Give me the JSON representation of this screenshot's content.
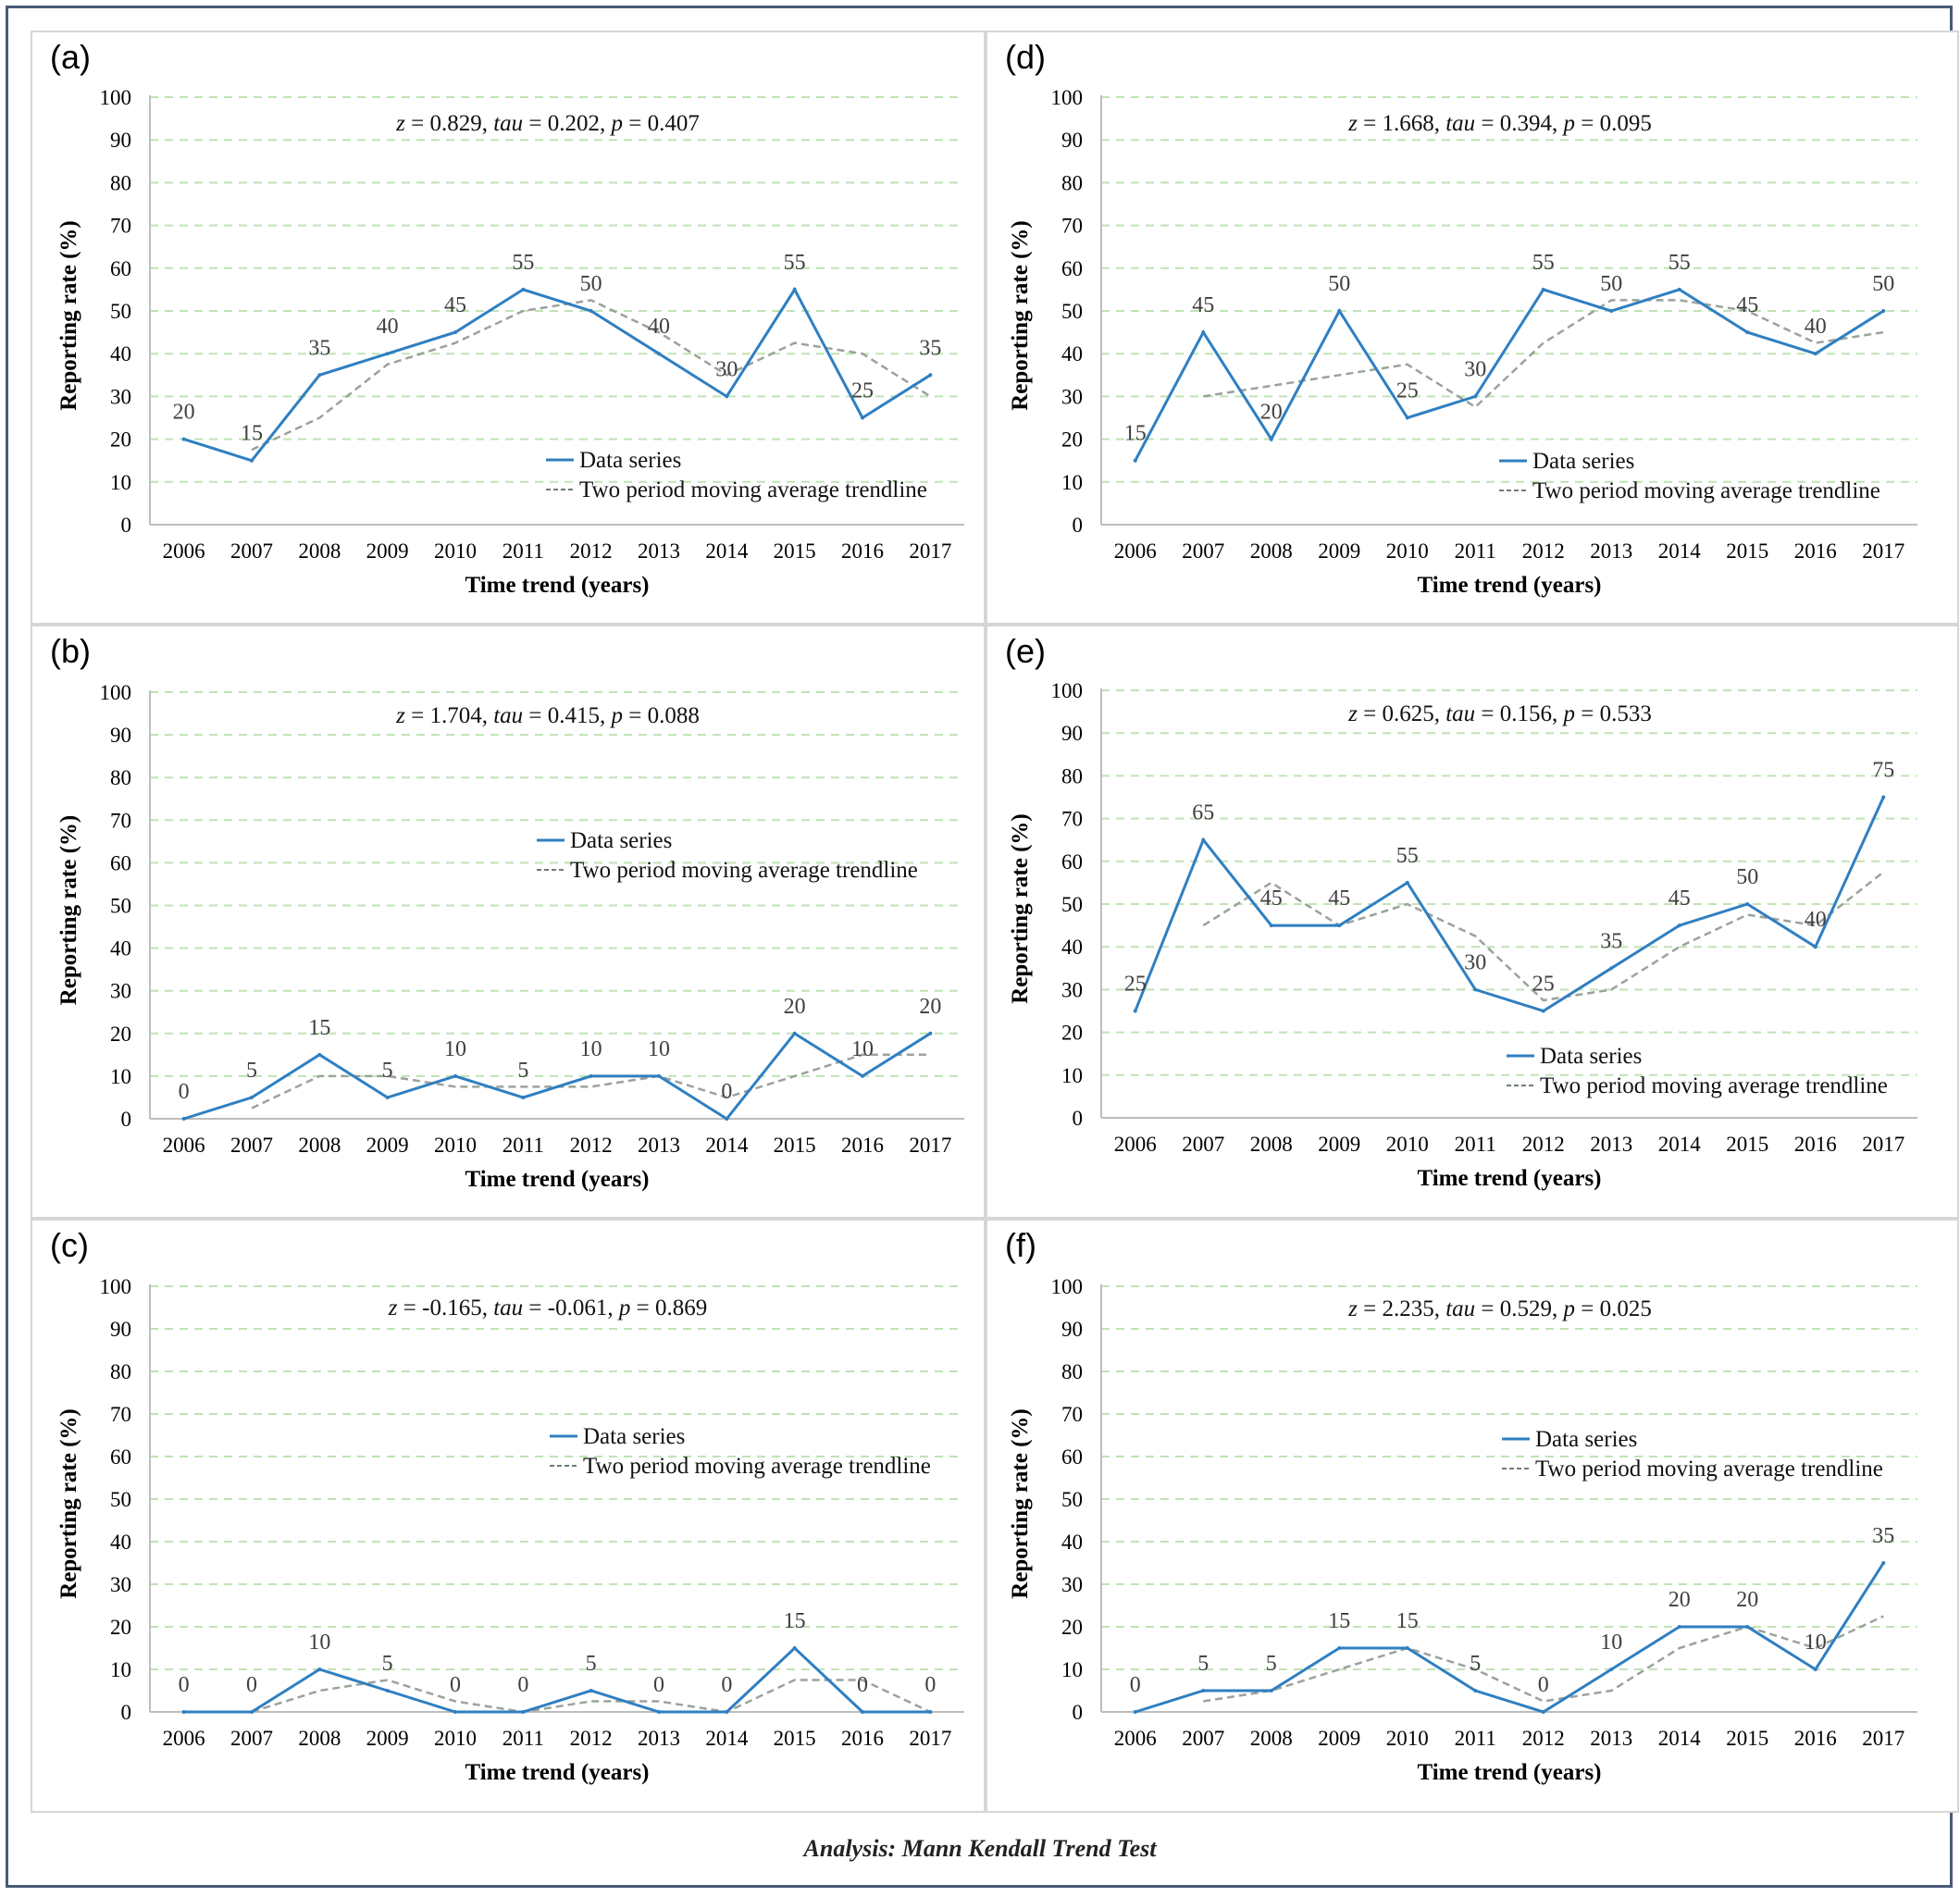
{
  "caption": "Analysis: Mann Kendall Trend Test",
  "colors": {
    "series": "#2f7fc1",
    "trend": "#9aa39a",
    "grid": "#bfe3b4",
    "panel_border": "#d6d6d6",
    "frame": "#4a5a78"
  },
  "legend": {
    "series": "Data series",
    "trend": "Two period moving average trendline"
  },
  "axis": {
    "ylabel": "Reporting rate (%)",
    "xlabel": "Time trend (years)",
    "yticks": [
      "0",
      "10",
      "20",
      "30",
      "40",
      "50",
      "60",
      "70",
      "80",
      "90",
      "100"
    ]
  },
  "chart_data": [
    {
      "type": "line",
      "panel": "(a)",
      "stats": {
        "z": "0.829",
        "tau": "0.202",
        "p": "0.407"
      },
      "x": [
        "2006",
        "2007",
        "2008",
        "2009",
        "2010",
        "2011",
        "2012",
        "2013",
        "2014",
        "2015",
        "2016",
        "2017"
      ],
      "series": [
        {
          "name": "Data series",
          "values": [
            20,
            15,
            35,
            40,
            45,
            55,
            50,
            40,
            30,
            55,
            25,
            35
          ]
        },
        {
          "name": "Two period moving average trendline",
          "values": [
            null,
            17.5,
            25,
            37.5,
            42.5,
            50,
            52.5,
            45,
            35,
            42.5,
            40,
            30
          ]
        }
      ],
      "ylim": [
        0,
        100
      ],
      "xlabel": "Time trend (years)",
      "ylabel": "Reporting rate (%)",
      "legend_position": "bottom-right"
    },
    {
      "type": "line",
      "panel": "(b)",
      "stats": {
        "z": "1.704",
        "tau": "0.415",
        "p": "0.088"
      },
      "x": [
        "2006",
        "2007",
        "2008",
        "2009",
        "2010",
        "2011",
        "2012",
        "2013",
        "2014",
        "2015",
        "2016",
        "2017"
      ],
      "series": [
        {
          "name": "Data series",
          "values": [
            0,
            5,
            15,
            5,
            10,
            5,
            10,
            10,
            0,
            20,
            10,
            20
          ]
        },
        {
          "name": "Two period moving average trendline",
          "values": [
            null,
            2.5,
            10,
            10,
            7.5,
            7.5,
            7.5,
            10,
            5,
            10,
            15,
            15
          ]
        }
      ],
      "ylim": [
        0,
        100
      ],
      "xlabel": "Time trend (years)",
      "ylabel": "Reporting rate (%)",
      "legend_position": "middle-right"
    },
    {
      "type": "line",
      "panel": "(c)",
      "stats": {
        "z": "-0.165",
        "tau": "-0.061",
        "p": "0.869"
      },
      "x": [
        "2006",
        "2007",
        "2008",
        "2009",
        "2010",
        "2011",
        "2012",
        "2013",
        "2014",
        "2015",
        "2016",
        "2017"
      ],
      "series": [
        {
          "name": "Data series",
          "values": [
            0,
            0,
            10,
            5,
            0,
            0,
            5,
            0,
            0,
            15,
            0,
            0
          ]
        },
        {
          "name": "Two period moving average trendline",
          "values": [
            null,
            0,
            5,
            7.5,
            2.5,
            0,
            2.5,
            2.5,
            0,
            7.5,
            7.5,
            0
          ]
        }
      ],
      "ylim": [
        0,
        100
      ],
      "xlabel": "Time trend (years)",
      "ylabel": "Reporting rate (%)",
      "legend_position": "middle-right"
    },
    {
      "type": "line",
      "panel": "(d)",
      "stats": {
        "z": "1.668",
        "tau": "0.394",
        "p": "0.095"
      },
      "x": [
        "2006",
        "2007",
        "2008",
        "2009",
        "2010",
        "2011",
        "2012",
        "2013",
        "2014",
        "2015",
        "2016",
        "2017"
      ],
      "series": [
        {
          "name": "Data series",
          "values": [
            15,
            45,
            20,
            50,
            25,
            30,
            55,
            50,
            55,
            45,
            40,
            50
          ]
        },
        {
          "name": "Two period moving average trendline",
          "values": [
            null,
            30,
            32.5,
            35,
            37.5,
            27.5,
            42.5,
            52.5,
            52.5,
            50,
            42.5,
            45
          ]
        }
      ],
      "ylim": [
        0,
        100
      ],
      "xlabel": "Time trend (years)",
      "ylabel": "Reporting rate (%)",
      "legend_position": "bottom-right"
    },
    {
      "type": "line",
      "panel": "(e)",
      "stats": {
        "z": "0.625",
        "tau": "0.156",
        "p": "0.533"
      },
      "x": [
        "2006",
        "2007",
        "2008",
        "2009",
        "2010",
        "2011",
        "2012",
        "2013",
        "2014",
        "2015",
        "2016",
        "2017"
      ],
      "series": [
        {
          "name": "Data series",
          "values": [
            25,
            65,
            45,
            45,
            55,
            30,
            25,
            35,
            45,
            50,
            40,
            75
          ]
        },
        {
          "name": "Two period moving average trendline",
          "values": [
            null,
            45,
            55,
            45,
            50,
            42.5,
            27.5,
            30,
            40,
            47.5,
            45,
            57.5
          ]
        }
      ],
      "ylim": [
        0,
        100
      ],
      "xlabel": "Time trend (years)",
      "ylabel": "Reporting rate (%)",
      "legend_position": "bottom-right"
    },
    {
      "type": "line",
      "panel": "(f)",
      "stats": {
        "z": "2.235",
        "tau": "0.529",
        "p": "0.025"
      },
      "x": [
        "2006",
        "2007",
        "2008",
        "2009",
        "2010",
        "2011",
        "2012",
        "2013",
        "2014",
        "2015",
        "2016",
        "2017"
      ],
      "series": [
        {
          "name": "Data series",
          "values": [
            0,
            5,
            5,
            15,
            15,
            5,
            0,
            10,
            20,
            20,
            10,
            35
          ]
        },
        {
          "name": "Two period moving average trendline",
          "values": [
            null,
            2.5,
            5,
            10,
            15,
            10,
            2.5,
            5,
            15,
            20,
            15,
            22.5
          ]
        }
      ],
      "ylim": [
        0,
        100
      ],
      "xlabel": "Time trend (years)",
      "ylabel": "Reporting rate (%)",
      "legend_position": "middle-right"
    }
  ]
}
